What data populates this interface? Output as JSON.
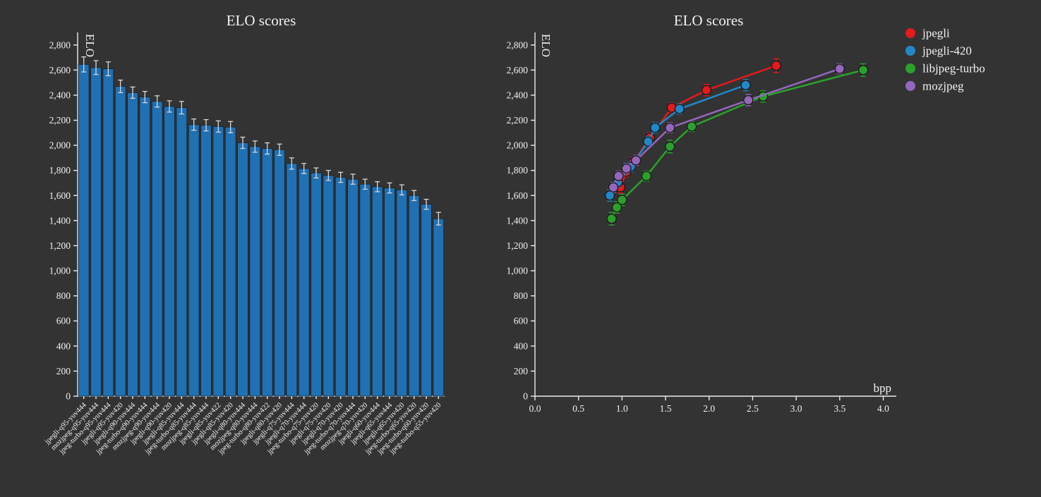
{
  "page": {
    "background": "#333333",
    "text_color": "#f2f2f2",
    "axis_color": "#ececec"
  },
  "chart_data": [
    {
      "type": "bar",
      "title": "ELO scores",
      "ylabel": "ELO",
      "ylim": [
        0,
        2900
      ],
      "yticks": [
        0,
        200,
        400,
        600,
        800,
        1000,
        1200,
        1400,
        1600,
        1800,
        2000,
        2200,
        2400,
        2600,
        2800
      ],
      "bar_color": "#2070b4",
      "error_color": "#d8d8d8",
      "grid": false,
      "categories": [
        "jpegli-q95-yuv444",
        "mozjpeg-q95-yuv444",
        "jpeg-turbo-q95-yuv444",
        "jpegli-q95-yuv420",
        "jpegli-q90-yuv444",
        "jpeg-turbo-q90-yuv444",
        "mozjpeg-q90-yuv444",
        "jpegli-q90-yuv420",
        "jpegli-q85-yuv444",
        "jpeg-turbo-q85-yuv444",
        "mozjpeg-q85-yuv444",
        "jpegli-q85-yuv422",
        "jpegli-q85-yuv420",
        "jpegli-q80-yuv444",
        "mozjpeg-q80-yuv444",
        "jpeg-turbo-q80-yuv422",
        "jpegli-q80-yuv420",
        "jpegli-q75-yuv444",
        "jpegli-q70-yuv444",
        "jpeg-turbo-q75-yuv420",
        "jpegli-q75-yuv420",
        "jpegli-q70-yuv420",
        "jpeg-turbo-q70-yuv444",
        "mozjpeg-q70-yuv420",
        "jpegli-q60-yuv444",
        "jpegli-q65-yuv444",
        "jpegli-q65-yuv420",
        "jpeg-turbo-q65-yuv420",
        "jpeg-turbo-q60-yuv420",
        "jpeg-turbo-q55-yuv420"
      ],
      "values": [
        2645,
        2620,
        2610,
        2470,
        2420,
        2385,
        2350,
        2310,
        2300,
        2165,
        2160,
        2150,
        2145,
        2020,
        1990,
        1975,
        1965,
        1855,
        1815,
        1780,
        1760,
        1745,
        1730,
        1690,
        1670,
        1660,
        1645,
        1600,
        1530,
        1415
      ],
      "errors": [
        60,
        55,
        55,
        50,
        45,
        45,
        45,
        45,
        50,
        45,
        45,
        45,
        45,
        45,
        45,
        45,
        45,
        45,
        40,
        40,
        40,
        40,
        40,
        40,
        40,
        40,
        40,
        40,
        40,
        50
      ]
    },
    {
      "type": "line",
      "title": "ELO scores",
      "xlabel": "bpp",
      "ylabel": "ELO",
      "xlim": [
        0,
        4.15
      ],
      "ylim": [
        0,
        2900
      ],
      "xticks": [
        0.0,
        0.5,
        1.0,
        1.5,
        2.0,
        2.5,
        3.0,
        3.5,
        4.0
      ],
      "yticks": [
        0,
        200,
        400,
        600,
        800,
        1000,
        1200,
        1400,
        1600,
        1800,
        2000,
        2200,
        2400,
        2600,
        2800
      ],
      "legend_position": "top-right-outside",
      "grid": false,
      "series": [
        {
          "name": "jpegli",
          "color": "#e41a1c",
          "x": [
            0.98,
            1.05,
            1.13,
            1.32,
            1.57,
            1.97,
            2.77
          ],
          "y": [
            1665,
            1790,
            1865,
            2060,
            2300,
            2440,
            2635
          ],
          "errors": [
            45,
            40,
            40,
            40,
            40,
            45,
            55
          ]
        },
        {
          "name": "jpegli-420",
          "color": "#2287c7",
          "x": [
            0.86,
            0.95,
            1.1,
            1.3,
            1.38,
            1.66,
            2.42
          ],
          "y": [
            1600,
            1705,
            1830,
            2030,
            2140,
            2290,
            2480
          ],
          "errors": [
            45,
            40,
            40,
            40,
            40,
            40,
            45
          ]
        },
        {
          "name": "libjpeg-turbo",
          "color": "#2ca02c",
          "x": [
            0.88,
            0.94,
            1.0,
            1.28,
            1.55,
            1.8,
            2.62,
            3.77
          ],
          "y": [
            1415,
            1505,
            1565,
            1755,
            1990,
            2150,
            2390,
            2600
          ],
          "errors": [
            50,
            45,
            45,
            40,
            50,
            40,
            45,
            50
          ]
        },
        {
          "name": "mozjpeg",
          "color": "#9467bd",
          "x": [
            0.9,
            0.96,
            1.05,
            1.16,
            1.55,
            2.45,
            3.5
          ],
          "y": [
            1665,
            1755,
            1815,
            1880,
            2140,
            2360,
            2610
          ],
          "errors": [
            40,
            40,
            40,
            40,
            40,
            45,
            40
          ]
        }
      ]
    }
  ]
}
